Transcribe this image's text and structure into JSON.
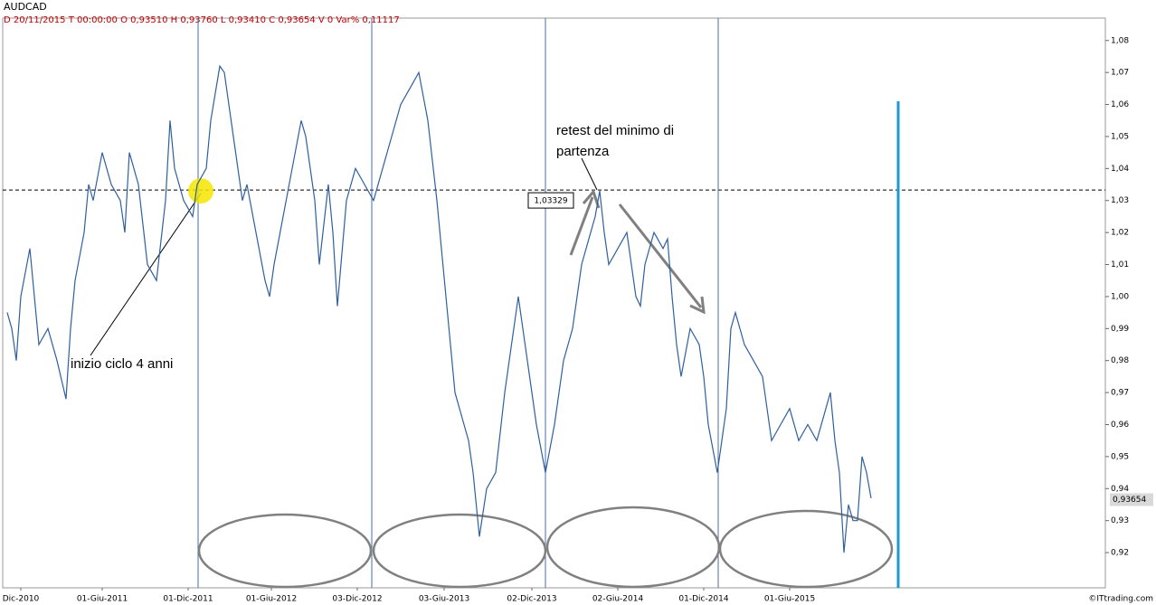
{
  "chart_data": {
    "type": "line",
    "title": "AUDCAD",
    "subtitle": "D 20/11/2015  T 00:00:00   O 0,93510   H 0,93760   L 0,93410   C 0,93654   V 0   Var% 0,11117",
    "x": [
      5,
      10,
      15,
      20,
      30,
      40,
      50,
      60,
      70,
      75,
      80,
      90,
      95,
      100,
      110,
      120,
      130,
      135,
      140,
      150,
      160,
      170,
      180,
      185,
      190,
      200,
      210,
      215,
      225,
      230,
      240,
      245,
      255,
      265,
      270,
      280,
      290,
      295,
      300,
      310,
      320,
      330,
      335,
      345,
      350,
      360,
      365,
      370,
      380,
      390,
      400,
      410,
      420,
      430,
      440,
      450,
      460,
      470,
      480,
      490,
      495,
      500,
      510,
      515,
      520,
      527,
      535,
      545,
      555,
      565,
      570,
      580,
      590,
      600,
      610,
      620,
      630,
      640,
      650,
      655,
      660,
      665,
      670,
      680,
      690,
      700,
      705,
      710,
      720,
      730,
      735,
      740,
      745,
      750,
      760,
      770,
      775,
      780,
      790,
      800,
      805,
      810,
      820,
      830,
      840,
      850,
      860,
      870,
      880,
      890,
      900,
      910,
      915,
      920,
      925,
      930,
      935,
      940,
      945,
      950,
      955,
      960
    ],
    "series": [
      {
        "name": "AUDCAD",
        "color": "#2f5f9e",
        "values": [
          0.995,
          0.99,
          0.98,
          1.0,
          1.015,
          0.985,
          0.99,
          0.98,
          0.968,
          0.99,
          1.005,
          1.02,
          1.035,
          1.03,
          1.045,
          1.035,
          1.03,
          1.02,
          1.045,
          1.035,
          1.01,
          1.005,
          1.03,
          1.055,
          1.04,
          1.03,
          1.025,
          1.035,
          1.04,
          1.055,
          1.072,
          1.07,
          1.05,
          1.03,
          1.035,
          1.02,
          1.005,
          1.0,
          1.01,
          1.025,
          1.04,
          1.055,
          1.05,
          1.03,
          1.01,
          1.035,
          1.02,
          0.997,
          1.03,
          1.04,
          1.035,
          1.03,
          1.04,
          1.05,
          1.06,
          1.065,
          1.07,
          1.055,
          1.03,
          1.0,
          0.985,
          0.97,
          0.96,
          0.955,
          0.945,
          0.925,
          0.94,
          0.945,
          0.97,
          0.99,
          1.0,
          0.98,
          0.96,
          0.945,
          0.96,
          0.98,
          0.99,
          1.01,
          1.02,
          1.025,
          1.033,
          1.02,
          1.01,
          1.015,
          1.02,
          1.0,
          0.997,
          1.01,
          1.02,
          1.015,
          1.018,
          1.0,
          0.985,
          0.975,
          0.99,
          0.985,
          0.975,
          0.96,
          0.945,
          0.965,
          0.99,
          0.995,
          0.985,
          0.98,
          0.975,
          0.955,
          0.96,
          0.965,
          0.955,
          0.96,
          0.955,
          0.965,
          0.97,
          0.955,
          0.945,
          0.92,
          0.935,
          0.93,
          0.93,
          0.95,
          0.945,
          0.937
        ]
      }
    ],
    "xlim": [
      0,
      1219
    ],
    "xticks": [
      {
        "value": 20,
        "label": "Dic-2010"
      },
      {
        "value": 110,
        "label": "01-Giu-2011"
      },
      {
        "value": 205,
        "label": "01-Dic-2011"
      },
      {
        "value": 297,
        "label": "01-Giu-2012"
      },
      {
        "value": 392,
        "label": "03-Dic-2012"
      },
      {
        "value": 488,
        "label": "03-Giu-2013"
      },
      {
        "value": 585,
        "label": "02-Dic-2013"
      },
      {
        "value": 680,
        "label": "02-Giu-2014"
      },
      {
        "value": 775,
        "label": "01-Dic-2014"
      },
      {
        "value": 870,
        "label": "01-Giu-2015"
      }
    ],
    "ylim": [
      0.909,
      1.087
    ],
    "yticks": [
      {
        "value": 0.92,
        "label": "0,92"
      },
      {
        "value": 0.93,
        "label": "0,93"
      },
      {
        "value": 0.94,
        "label": "0,94"
      },
      {
        "value": 0.95,
        "label": "0,95"
      },
      {
        "value": 0.96,
        "label": "0,96"
      },
      {
        "value": 0.97,
        "label": "0,97"
      },
      {
        "value": 0.98,
        "label": "0,98"
      },
      {
        "value": 0.99,
        "label": "0,99"
      },
      {
        "value": 1.0,
        "label": "1,00"
      },
      {
        "value": 1.01,
        "label": "1,01"
      },
      {
        "value": 1.02,
        "label": "1,02"
      },
      {
        "value": 1.03,
        "label": "1,03"
      },
      {
        "value": 1.04,
        "label": "1,04"
      },
      {
        "value": 1.05,
        "label": "1,05"
      },
      {
        "value": 1.06,
        "label": "1,06"
      },
      {
        "value": 1.07,
        "label": "1,07"
      },
      {
        "value": 1.08,
        "label": "1,08"
      }
    ],
    "last_price": {
      "value": 0.93654,
      "label": "0,93654"
    },
    "level": {
      "value": 1.03329,
      "label": "1,03329"
    },
    "annotations": [
      "retest del minimo di",
      "partenza",
      "inizio ciclo 4 anni"
    ],
    "credit": "©ITtrading.com"
  }
}
